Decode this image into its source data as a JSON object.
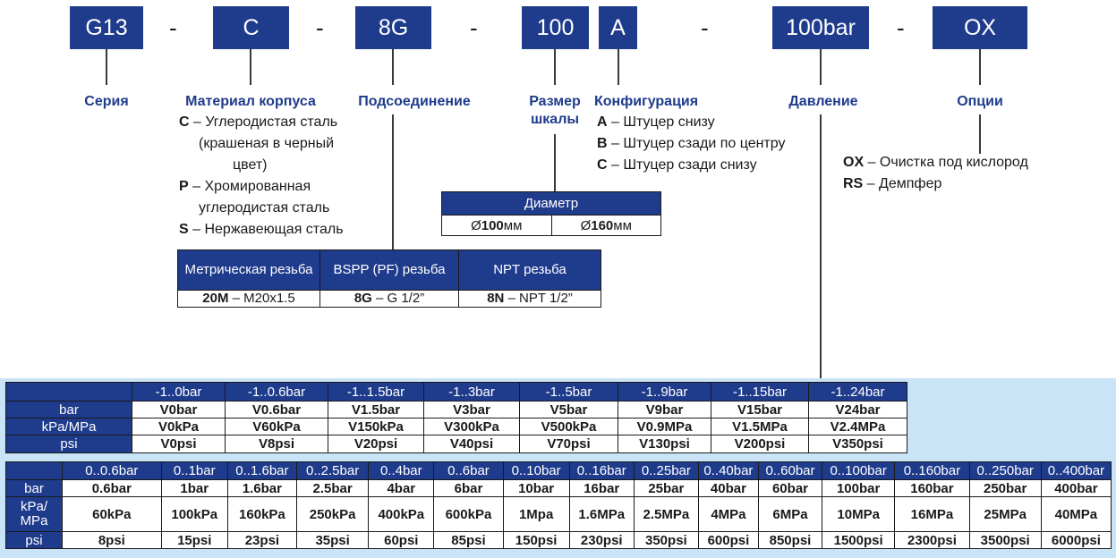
{
  "code": {
    "series": "G13",
    "material": "C",
    "connection": "8G",
    "scale": "100",
    "config": "A",
    "pressure": "100bar",
    "options": "OX",
    "dash": "-"
  },
  "labels": {
    "series": "Серия",
    "material": "Материал корпуса",
    "connection": "Подсоединение",
    "scale_line1": "Размер",
    "scale_line2": "шкалы",
    "config": "Конфигурация",
    "pressure": "Давление",
    "options": "Опции"
  },
  "material": [
    {
      "code": "C",
      "text": " – Углеродистая сталь",
      "cont": [
        "(крашеная в черный",
        "цвет)"
      ]
    },
    {
      "code": "P",
      "text": " – Хромированная",
      "cont": [
        "углеродистая сталь"
      ]
    },
    {
      "code": "S",
      "text": " – Нержавеющая сталь",
      "cont": []
    }
  ],
  "config": [
    {
      "code": "A",
      "text": " – Штуцер снизу"
    },
    {
      "code": "B",
      "text": " – Штуцер сзади по центру"
    },
    {
      "code": "C",
      "text": " – Штуцер сзади снизу"
    }
  ],
  "options": [
    {
      "code": "OX",
      "text": " – Очистка под кислород"
    },
    {
      "code": "RS",
      "text": " – Демпфер"
    }
  ],
  "diameter": {
    "title": "Диаметр",
    "items": [
      {
        "prefix": "Ø",
        "value": "100",
        "unit": "мм"
      },
      {
        "prefix": "Ø",
        "value": "160",
        "unit": "мм"
      }
    ]
  },
  "connection_table": {
    "headers": [
      "Метрическая резьба",
      "BSPP (PF) резьба",
      "NPT резьба"
    ],
    "cells": [
      {
        "code": "20M",
        "text": " – M20x1.5"
      },
      {
        "code": "8G",
        "text": " – G 1/2”"
      },
      {
        "code": "8N",
        "text": " – NPT 1/2”"
      }
    ]
  },
  "vacuum_table": {
    "ranges": [
      "-1..0bar",
      "-1..0.6bar",
      "-1..1.5bar",
      "-1..3bar",
      "-1..5bar",
      "-1..9bar",
      "-1..15bar",
      "-1..24bar"
    ],
    "rows": [
      {
        "label": "bar",
        "values": [
          "V0bar",
          "V0.6bar",
          "V1.5bar",
          "V3bar",
          "V5bar",
          "V9bar",
          "V15bar",
          "V24bar"
        ]
      },
      {
        "label": "kPa/MPa",
        "values": [
          "V0kPa",
          "V60kPa",
          "V150kPa",
          "V300kPa",
          "V500kPa",
          "V0.9MPa",
          "V1.5MPa",
          "V2.4MPa"
        ]
      },
      {
        "label": "psi",
        "values": [
          "V0psi",
          "V8psi",
          "V20psi",
          "V40psi",
          "V70psi",
          "V130psi",
          "V200psi",
          "V350psi"
        ]
      }
    ]
  },
  "pressure_table": {
    "ranges": [
      "0..0.6bar",
      "0..1bar",
      "0..1.6bar",
      "0..2.5bar",
      "0..4bar",
      "0..6bar",
      "0..10bar",
      "0..16bar",
      "0..25bar",
      "0..40bar",
      "0..60bar",
      "0..100bar",
      "0..160bar",
      "0..250bar",
      "0..400bar"
    ],
    "rows": [
      {
        "label": "bar",
        "values": [
          "0.6bar",
          "1bar",
          "1.6bar",
          "2.5bar",
          "4bar",
          "6bar",
          "10bar",
          "16bar",
          "25bar",
          "40bar",
          "60bar",
          "100bar",
          "160bar",
          "250bar",
          "400bar"
        ]
      },
      {
        "label": "kPa/ MPa",
        "values": [
          "60kPa",
          "100kPa",
          "160kPa",
          "250kPa",
          "400kPa",
          "600kPa",
          "1Mpa",
          "1.6MPa",
          "2.5MPa",
          "4MPa",
          "6MPa",
          "10MPa",
          "16MPa",
          "25MPa",
          "40MPa"
        ]
      },
      {
        "label": "psi",
        "values": [
          "8psi",
          "15psi",
          "23psi",
          "35psi",
          "60psi",
          "85psi",
          "150psi",
          "230psi",
          "350psi",
          "600psi",
          "850psi",
          "1500psi",
          "2300psi",
          "3500psi",
          "6000psi"
        ]
      }
    ]
  },
  "colors": {
    "primary": "#1f3b8c",
    "band": "#c9e3f7"
  }
}
